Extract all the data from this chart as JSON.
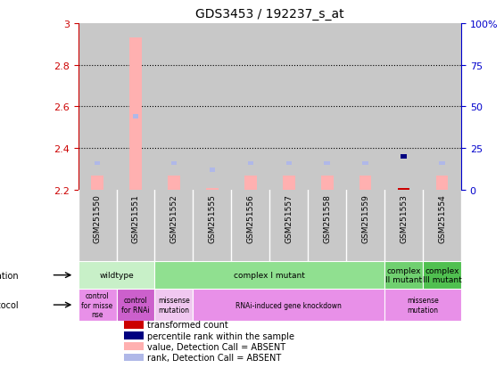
{
  "title": "GDS3453 / 192237_s_at",
  "samples": [
    "GSM251550",
    "GSM251551",
    "GSM251552",
    "GSM251555",
    "GSM251556",
    "GSM251557",
    "GSM251558",
    "GSM251559",
    "GSM251553",
    "GSM251554"
  ],
  "bar_values": [
    2.27,
    2.93,
    2.27,
    2.21,
    2.27,
    2.27,
    2.27,
    2.27,
    2.21,
    2.27
  ],
  "bar_bottom": 2.2,
  "bar_colors": [
    "#ffb0b0",
    "#ffb0b0",
    "#ffb0b0",
    "#ffb0b0",
    "#ffb0b0",
    "#ffb0b0",
    "#ffb0b0",
    "#ffb0b0",
    "#cc0000",
    "#ffb0b0"
  ],
  "rank_values": [
    16,
    44,
    16,
    12,
    16,
    16,
    16,
    16,
    20,
    16
  ],
  "rank_colors": [
    "#b0b8e8",
    "#b0b8e8",
    "#b0b8e8",
    "#b0b8e8",
    "#b0b8e8",
    "#b0b8e8",
    "#b0b8e8",
    "#b0b8e8",
    "#000080",
    "#b0b8e8"
  ],
  "ylim": [
    2.2,
    3.0
  ],
  "yticks": [
    2.2,
    2.4,
    2.6,
    2.8,
    3.0
  ],
  "ytick_labels": [
    "2.2",
    "2.4",
    "2.6",
    "2.8",
    "3"
  ],
  "y2lim": [
    0,
    100
  ],
  "y2ticks": [
    0,
    25,
    50,
    75,
    100
  ],
  "y2tick_labels": [
    "0",
    "25",
    "50",
    "75",
    "100%"
  ],
  "left_color": "#cc0000",
  "right_color": "#0000cc",
  "col_bg_color": "#c8c8c8",
  "genotype_row": [
    {
      "label": "wildtype",
      "color": "#c8f0c8",
      "start": 0,
      "end": 2
    },
    {
      "label": "complex I mutant",
      "color": "#90e090",
      "start": 2,
      "end": 8
    },
    {
      "label": "complex\nII mutant",
      "color": "#70d070",
      "start": 8,
      "end": 9
    },
    {
      "label": "complex\nIII mutant",
      "color": "#50c050",
      "start": 9,
      "end": 10
    }
  ],
  "protocol_row": [
    {
      "label": "control\nfor misse\nnse",
      "color": "#e890e8",
      "start": 0,
      "end": 1
    },
    {
      "label": "control\nfor RNAi",
      "color": "#cc60cc",
      "start": 1,
      "end": 2
    },
    {
      "label": "missense\nmutation",
      "color": "#f0c8f0",
      "start": 2,
      "end": 3
    },
    {
      "label": "RNAi-induced gene knockdown",
      "color": "#e890e8",
      "start": 3,
      "end": 8
    },
    {
      "label": "missense\nmutation",
      "color": "#e890e8",
      "start": 8,
      "end": 10
    }
  ],
  "legend_items": [
    {
      "color": "#cc0000",
      "label": "transformed count"
    },
    {
      "color": "#000080",
      "label": "percentile rank within the sample"
    },
    {
      "color": "#ffb0b0",
      "label": "value, Detection Call = ABSENT"
    },
    {
      "color": "#b0b8e8",
      "label": "rank, Detection Call = ABSENT"
    }
  ]
}
